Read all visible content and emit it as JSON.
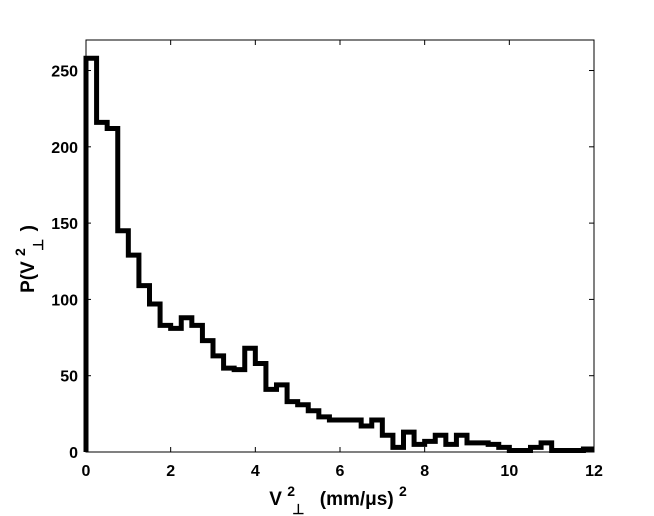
{
  "chart_data": {
    "type": "bar",
    "histogram": true,
    "xlabel": {
      "main": "V",
      "superscript": "2",
      "subscript": "⊥",
      "suffix": "(mm/μs)",
      "suffix_superscript": "2"
    },
    "ylabel": {
      "main": "P(V",
      "superscript": "2",
      "subscript": "⊥",
      "suffix": ")"
    },
    "xlim": [
      0,
      12
    ],
    "ylim": [
      0,
      270
    ],
    "xticks": [
      "0",
      "2",
      "4",
      "6",
      "8",
      "10",
      "12"
    ],
    "yticks": [
      "0",
      "50",
      "100",
      "150",
      "200",
      "250"
    ],
    "bin_width": 0.25,
    "bin_edges": [
      0,
      0.25,
      0.5,
      0.75,
      1.0,
      1.25,
      1.5,
      1.75,
      2.0,
      2.25,
      2.5,
      2.75,
      3.0,
      3.25,
      3.5,
      3.75,
      4.0,
      4.25,
      4.5,
      4.75,
      5.0,
      5.25,
      5.5,
      5.75,
      6.0,
      6.25,
      6.5,
      6.75,
      7.0,
      7.25,
      7.5,
      7.75,
      8.0,
      8.25,
      8.5,
      8.75,
      9.0,
      9.25,
      9.5,
      9.75,
      10.0,
      10.25,
      10.5,
      10.75,
      11.0,
      11.25,
      11.5,
      11.75,
      12.0
    ],
    "values": [
      258,
      216,
      212,
      145,
      129,
      109,
      97,
      83,
      81,
      88,
      83,
      73,
      63,
      55,
      54,
      68,
      58,
      41,
      44,
      33,
      31,
      27,
      23,
      21,
      21,
      21,
      17,
      21,
      11,
      3,
      13,
      5,
      7,
      11,
      5,
      11,
      6,
      6,
      5,
      3,
      1,
      1,
      3,
      6,
      1,
      1,
      1,
      2
    ],
    "grid": false,
    "legend": "none"
  },
  "colors": {
    "line": "#000000",
    "background": "#ffffff"
  }
}
